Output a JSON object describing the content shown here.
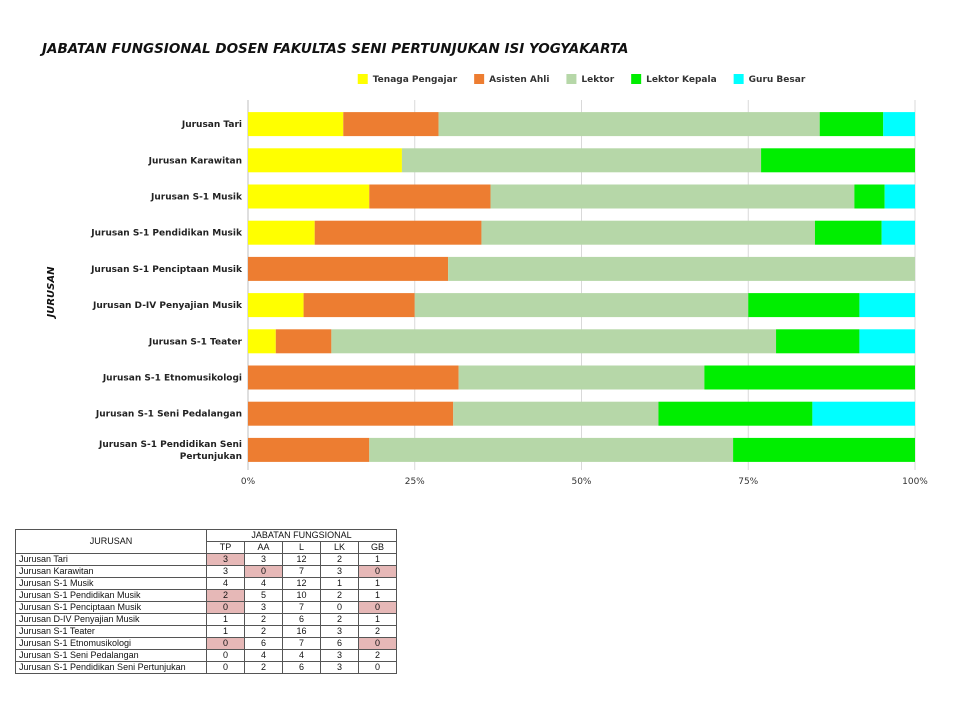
{
  "chart_data": {
    "type": "bar",
    "orientation": "horizontal",
    "stacked": "percent",
    "title": "JABATAN FUNGSIONAL DOSEN FAKULTAS SENI PERTUNJUKAN ISI YOGYAKARTA",
    "ylabel": "JURUSAN",
    "xlabel": "",
    "xlim": [
      0,
      100
    ],
    "x_ticks": [
      "0%",
      "25%",
      "50%",
      "75%",
      "100%"
    ],
    "legend_position": "top",
    "grid": true,
    "categories": [
      "Jurusan Tari",
      "Jurusan Karawitan",
      "Jurusan S-1 Musik",
      "Jurusan S-1 Pendidikan Musik",
      "Jurusan S-1 Penciptaan Musik",
      "Jurusan D-IV Penyajian Musik",
      "Jurusan S-1 Teater",
      "Jurusan S-1 Etnomusikologi",
      "Jurusan S-1 Seni Pedalangan",
      "Jurusan S-1 Pendidikan Seni Pertunjukan"
    ],
    "series": [
      {
        "name": "Tenaga Pengajar",
        "color": "#ffff00",
        "values": [
          3,
          3,
          4,
          2,
          0,
          1,
          1,
          0,
          0,
          0
        ]
      },
      {
        "name": "Asisten Ahli",
        "color": "#ed7d31",
        "values": [
          3,
          0,
          4,
          5,
          3,
          2,
          2,
          6,
          4,
          2
        ]
      },
      {
        "name": "Lektor",
        "color": "#b6d7a8",
        "values": [
          12,
          7,
          12,
          10,
          7,
          6,
          16,
          7,
          4,
          6
        ]
      },
      {
        "name": "Lektor Kepala",
        "color": "#00ee00",
        "values": [
          2,
          3,
          1,
          2,
          0,
          2,
          3,
          6,
          3,
          3
        ]
      },
      {
        "name": "Guru Besar",
        "color": "#00ffff",
        "values": [
          1,
          0,
          1,
          1,
          0,
          1,
          2,
          0,
          2,
          0
        ]
      }
    ]
  },
  "table": {
    "corner_header": "JURUSAN",
    "group_header": "JABATAN FUNGSIONAL",
    "columns": [
      "TP",
      "AA",
      "L",
      "LK",
      "GB"
    ],
    "rows": [
      {
        "name": "Jurusan Tari",
        "values": [
          "3",
          "3",
          "12",
          "2",
          "1"
        ],
        "highlight": [
          true,
          false,
          false,
          false,
          false
        ]
      },
      {
        "name": "Jurusan Karawitan",
        "values": [
          "3",
          "0",
          "7",
          "3",
          "0"
        ],
        "highlight": [
          false,
          true,
          false,
          false,
          true
        ]
      },
      {
        "name": "Jurusan S-1 Musik",
        "values": [
          "4",
          "4",
          "12",
          "1",
          "1"
        ],
        "highlight": [
          false,
          false,
          false,
          false,
          false
        ]
      },
      {
        "name": "Jurusan S-1 Pendidikan Musik",
        "values": [
          "2",
          "5",
          "10",
          "2",
          "1"
        ],
        "highlight": [
          true,
          false,
          false,
          false,
          false
        ]
      },
      {
        "name": "Jurusan S-1 Penciptaan Musik",
        "values": [
          "0",
          "3",
          "7",
          "0",
          "0"
        ],
        "highlight": [
          true,
          false,
          false,
          false,
          true
        ]
      },
      {
        "name": "Jurusan D-IV Penyajian Musik",
        "values": [
          "1",
          "2",
          "6",
          "2",
          "1"
        ],
        "highlight": [
          false,
          false,
          false,
          false,
          false
        ]
      },
      {
        "name": "Jurusan S-1 Teater",
        "values": [
          "1",
          "2",
          "16",
          "3",
          "2"
        ],
        "highlight": [
          false,
          false,
          false,
          false,
          false
        ]
      },
      {
        "name": "Jurusan S-1 Etnomusikologi",
        "values": [
          "0",
          "6",
          "7",
          "6",
          "0"
        ],
        "highlight": [
          true,
          false,
          false,
          false,
          true
        ]
      },
      {
        "name": "Jurusan S-1 Seni Pedalangan",
        "values": [
          "0",
          "4",
          "4",
          "3",
          "2"
        ],
        "highlight": [
          false,
          false,
          false,
          false,
          false
        ]
      },
      {
        "name": "Jurusan S-1 Pendidikan Seni Pertunjukan",
        "values": [
          "0",
          "2",
          "6",
          "3",
          "0"
        ],
        "highlight": [
          false,
          false,
          false,
          false,
          false
        ]
      }
    ]
  }
}
